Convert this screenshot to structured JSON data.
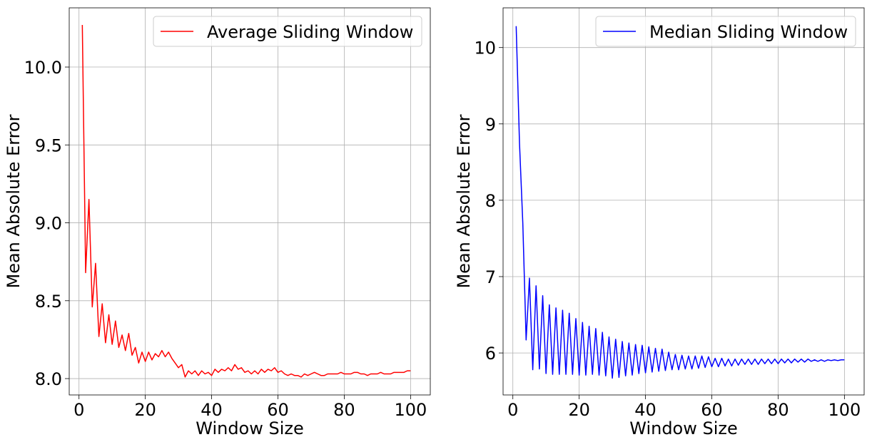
{
  "chart_data": [
    {
      "type": "line",
      "xlabel": "Window Size",
      "ylabel": "Mean Absolute Error",
      "xlim": [
        -2.95,
        105.95
      ],
      "ylim": [
        7.895,
        10.38
      ],
      "xticks": [
        0,
        20,
        40,
        60,
        80,
        100
      ],
      "xtick_labels": [
        "0",
        "20",
        "40",
        "60",
        "80",
        "100"
      ],
      "yticks": [
        8.0,
        8.5,
        9.0,
        9.5,
        10.0
      ],
      "ytick_labels": [
        "8.0",
        "8.5",
        "9.0",
        "9.5",
        "10.0"
      ],
      "grid": true,
      "legend_position": "top-right",
      "series": [
        {
          "name": "Average Sliding Window",
          "color": "#ff0000",
          "x": [
            1,
            2,
            3,
            4,
            5,
            6,
            7,
            8,
            9,
            10,
            11,
            12,
            13,
            14,
            15,
            16,
            17,
            18,
            19,
            20,
            21,
            22,
            23,
            24,
            25,
            26,
            27,
            28,
            29,
            30,
            31,
            32,
            33,
            34,
            35,
            36,
            37,
            38,
            39,
            40,
            41,
            42,
            43,
            44,
            45,
            46,
            47,
            48,
            49,
            50,
            51,
            52,
            53,
            54,
            55,
            56,
            57,
            58,
            59,
            60,
            61,
            62,
            63,
            64,
            65,
            66,
            67,
            68,
            69,
            70,
            71,
            72,
            73,
            74,
            75,
            76,
            77,
            78,
            79,
            80,
            81,
            82,
            83,
            84,
            85,
            86,
            87,
            88,
            89,
            90,
            91,
            92,
            93,
            94,
            95,
            96,
            97,
            98,
            99,
            100
          ],
          "values": [
            10.27,
            8.68,
            9.15,
            8.46,
            8.74,
            8.27,
            8.48,
            8.23,
            8.41,
            8.22,
            8.37,
            8.2,
            8.28,
            8.18,
            8.29,
            8.15,
            8.2,
            8.1,
            8.17,
            8.11,
            8.17,
            8.12,
            8.16,
            8.14,
            8.18,
            8.14,
            8.17,
            8.13,
            8.1,
            8.07,
            8.09,
            8.01,
            8.05,
            8.03,
            8.05,
            8.02,
            8.05,
            8.03,
            8.04,
            8.02,
            8.06,
            8.04,
            8.06,
            8.05,
            8.07,
            8.05,
            8.09,
            8.06,
            8.07,
            8.04,
            8.05,
            8.03,
            8.05,
            8.03,
            8.06,
            8.04,
            8.06,
            8.05,
            8.07,
            8.04,
            8.05,
            8.03,
            8.02,
            8.03,
            8.02,
            8.02,
            8.01,
            8.03,
            8.02,
            8.03,
            8.04,
            8.03,
            8.02,
            8.02,
            8.03,
            8.03,
            8.03,
            8.03,
            8.04,
            8.03,
            8.03,
            8.03,
            8.04,
            8.04,
            8.03,
            8.03,
            8.02,
            8.03,
            8.03,
            8.03,
            8.04,
            8.03,
            8.03,
            8.03,
            8.04,
            8.04,
            8.04,
            8.04,
            8.05,
            8.05
          ]
        }
      ]
    },
    {
      "type": "line",
      "xlabel": "Window Size",
      "ylabel": "Mean Absolute Error",
      "xlim": [
        -2.95,
        105.95
      ],
      "ylim": [
        5.45,
        10.52
      ],
      "xticks": [
        0,
        20,
        40,
        60,
        80,
        100
      ],
      "xtick_labels": [
        "0",
        "20",
        "40",
        "60",
        "80",
        "100"
      ],
      "yticks": [
        6,
        7,
        8,
        9,
        10
      ],
      "ytick_labels": [
        "6",
        "7",
        "8",
        "9",
        "10"
      ],
      "grid": true,
      "legend_position": "top-right",
      "series": [
        {
          "name": "Median Sliding Window",
          "color": "#0000ff",
          "x": [
            1,
            2,
            3,
            4,
            5,
            6,
            7,
            8,
            9,
            10,
            11,
            12,
            13,
            14,
            15,
            16,
            17,
            18,
            19,
            20,
            21,
            22,
            23,
            24,
            25,
            26,
            27,
            28,
            29,
            30,
            31,
            32,
            33,
            34,
            35,
            36,
            37,
            38,
            39,
            40,
            41,
            42,
            43,
            44,
            45,
            46,
            47,
            48,
            49,
            50,
            51,
            52,
            53,
            54,
            55,
            56,
            57,
            58,
            59,
            60,
            61,
            62,
            63,
            64,
            65,
            66,
            67,
            68,
            69,
            70,
            71,
            72,
            73,
            74,
            75,
            76,
            77,
            78,
            79,
            80,
            81,
            82,
            83,
            84,
            85,
            86,
            87,
            88,
            89,
            90,
            91,
            92,
            93,
            94,
            95,
            96,
            97,
            98,
            99,
            100
          ],
          "values": [
            10.28,
            8.75,
            7.7,
            6.17,
            6.98,
            5.78,
            6.88,
            5.79,
            6.75,
            5.73,
            6.63,
            5.72,
            6.59,
            5.72,
            6.56,
            5.72,
            6.52,
            5.72,
            6.45,
            5.71,
            6.4,
            5.71,
            6.35,
            5.72,
            6.32,
            5.71,
            6.27,
            5.7,
            6.21,
            5.67,
            6.18,
            5.68,
            6.15,
            5.7,
            6.13,
            5.71,
            6.11,
            5.73,
            6.1,
            5.74,
            6.08,
            5.75,
            6.06,
            5.76,
            6.05,
            5.77,
            6.01,
            5.78,
            5.98,
            5.78,
            5.97,
            5.79,
            5.96,
            5.79,
            5.96,
            5.8,
            5.96,
            5.81,
            5.95,
            5.82,
            5.93,
            5.82,
            5.93,
            5.83,
            5.92,
            5.83,
            5.92,
            5.84,
            5.92,
            5.85,
            5.92,
            5.85,
            5.92,
            5.85,
            5.92,
            5.86,
            5.92,
            5.86,
            5.92,
            5.86,
            5.92,
            5.87,
            5.92,
            5.87,
            5.92,
            5.88,
            5.92,
            5.88,
            5.92,
            5.89,
            5.91,
            5.89,
            5.91,
            5.89,
            5.91,
            5.9,
            5.91,
            5.9,
            5.91,
            5.91
          ]
        }
      ]
    }
  ]
}
